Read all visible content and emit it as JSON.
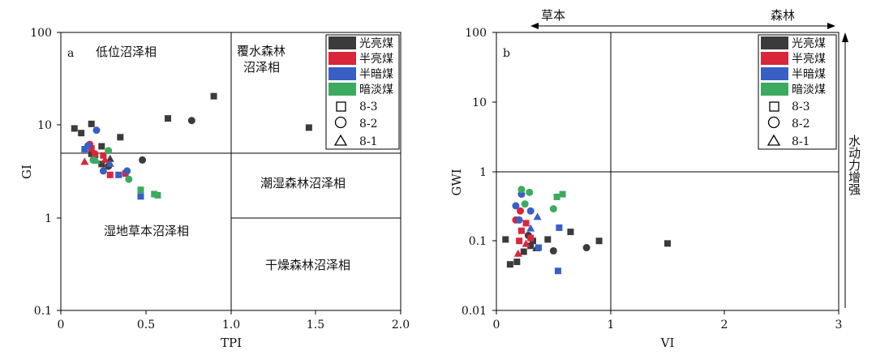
{
  "rank_legend": [
    {
      "label": "光亮煤",
      "color": "#3b3b3b"
    },
    {
      "label": "半亮煤",
      "color": "#d9263b"
    },
    {
      "label": "半暗煤",
      "color": "#3a5fc4"
    },
    {
      "label": "暗淡煤",
      "color": "#3caa5f"
    }
  ],
  "shape_legend": [
    {
      "label": "8-3",
      "shape": "square"
    },
    {
      "label": "8-2",
      "shape": "circle"
    },
    {
      "label": "8-1",
      "shape": "triangle"
    }
  ],
  "chart_data": [
    {
      "type": "scatter",
      "panel_label": "a",
      "xlabel": "TPI",
      "ylabel": "GI",
      "xlim": [
        0,
        2.0
      ],
      "ylim": [
        0.1,
        100
      ],
      "yscale": "log",
      "xticks": [
        "0",
        "0.5",
        "1.0",
        "1.5",
        "2.0"
      ],
      "yticks": [
        "0.1",
        "1",
        "10",
        "100"
      ],
      "grid": false,
      "legend_position": "top-right",
      "zone_labels": [
        "低位沼泽相",
        "覆水森林",
        "沼泽相",
        "潮湿森林沼泽相",
        "湿地草本沼泽相",
        "干燥森林沼泽相"
      ],
      "series": [
        {
          "name": "光亮煤",
          "color": "#3b3b3b",
          "points": [
            {
              "x": 0.08,
              "y": 9.2,
              "shape": "square"
            },
            {
              "x": 0.12,
              "y": 8.2,
              "shape": "square"
            },
            {
              "x": 0.18,
              "y": 10.3,
              "shape": "square"
            },
            {
              "x": 0.35,
              "y": 7.4,
              "shape": "square"
            },
            {
              "x": 0.63,
              "y": 11.8,
              "shape": "square"
            },
            {
              "x": 0.9,
              "y": 20.5,
              "shape": "square"
            },
            {
              "x": 1.46,
              "y": 9.4,
              "shape": "square"
            },
            {
              "x": 0.24,
              "y": 5.9,
              "shape": "square"
            },
            {
              "x": 0.18,
              "y": 4.9,
              "shape": "square"
            },
            {
              "x": 0.24,
              "y": 3.8,
              "shape": "square"
            },
            {
              "x": 0.2,
              "y": 4.6,
              "shape": "circle"
            },
            {
              "x": 0.77,
              "y": 11.2,
              "shape": "circle"
            },
            {
              "x": 0.48,
              "y": 4.2,
              "shape": "circle"
            },
            {
              "x": 0.28,
              "y": 3.6,
              "shape": "circle"
            },
            {
              "x": 0.29,
              "y": 4.3,
              "shape": "triangle"
            }
          ]
        },
        {
          "name": "半亮煤",
          "color": "#d9263b",
          "points": [
            {
              "x": 0.18,
              "y": 5.6,
              "shape": "square"
            },
            {
              "x": 0.25,
              "y": 4.7,
              "shape": "square"
            },
            {
              "x": 0.29,
              "y": 2.9,
              "shape": "square"
            },
            {
              "x": 0.38,
              "y": 3.0,
              "shape": "square"
            },
            {
              "x": 0.17,
              "y": 6.2,
              "shape": "circle"
            },
            {
              "x": 0.2,
              "y": 4.9,
              "shape": "circle"
            },
            {
              "x": 0.14,
              "y": 4.0,
              "shape": "triangle"
            },
            {
              "x": 0.26,
              "y": 4.2,
              "shape": "triangle"
            }
          ]
        },
        {
          "name": "半暗煤",
          "color": "#3a5fc4",
          "points": [
            {
              "x": 0.14,
              "y": 5.5,
              "shape": "square"
            },
            {
              "x": 0.34,
              "y": 2.9,
              "shape": "square"
            },
            {
              "x": 0.47,
              "y": 1.7,
              "shape": "square"
            },
            {
              "x": 0.21,
              "y": 8.8,
              "shape": "circle"
            },
            {
              "x": 0.25,
              "y": 3.2,
              "shape": "circle"
            },
            {
              "x": 0.16,
              "y": 6.0,
              "shape": "circle"
            },
            {
              "x": 0.39,
              "y": 3.2,
              "shape": "circle"
            },
            {
              "x": 0.29,
              "y": 3.8,
              "shape": "triangle"
            }
          ]
        },
        {
          "name": "暗淡煤",
          "color": "#3caa5f",
          "points": [
            {
              "x": 0.47,
              "y": 2.0,
              "shape": "square"
            },
            {
              "x": 0.55,
              "y": 1.8,
              "shape": "square"
            },
            {
              "x": 0.57,
              "y": 1.75,
              "shape": "square"
            },
            {
              "x": 0.28,
              "y": 5.3,
              "shape": "circle"
            },
            {
              "x": 0.4,
              "y": 2.6,
              "shape": "circle"
            },
            {
              "x": 0.19,
              "y": 4.2,
              "shape": "circle"
            },
            {
              "x": 0.21,
              "y": 4.1,
              "shape": "triangle"
            }
          ]
        }
      ]
    },
    {
      "type": "scatter",
      "panel_label": "b",
      "xlabel": "VI",
      "ylabel": "GWI",
      "xlim": [
        0,
        3
      ],
      "ylim": [
        0.01,
        100
      ],
      "yscale": "log",
      "xticks": [
        "0",
        "1",
        "2",
        "3"
      ],
      "yticks": [
        "0.01",
        "0.1",
        "1",
        "10",
        "100"
      ],
      "grid": false,
      "legend_position": "top-right",
      "top_arrow": {
        "left": "草本",
        "right": "森林"
      },
      "right_arrow": "水动力增强",
      "series": [
        {
          "name": "光亮煤",
          "color": "#3b3b3b",
          "points": [
            {
              "x": 0.08,
              "y": 0.105,
              "shape": "square"
            },
            {
              "x": 0.12,
              "y": 0.046,
              "shape": "square"
            },
            {
              "x": 0.18,
              "y": 0.05,
              "shape": "square"
            },
            {
              "x": 0.24,
              "y": 0.07,
              "shape": "square"
            },
            {
              "x": 0.3,
              "y": 0.085,
              "shape": "square"
            },
            {
              "x": 0.45,
              "y": 0.105,
              "shape": "square"
            },
            {
              "x": 0.65,
              "y": 0.135,
              "shape": "square"
            },
            {
              "x": 0.9,
              "y": 0.1,
              "shape": "square"
            },
            {
              "x": 1.5,
              "y": 0.092,
              "shape": "square"
            },
            {
              "x": 0.32,
              "y": 0.1,
              "shape": "square"
            },
            {
              "x": 0.5,
              "y": 0.072,
              "shape": "circle"
            },
            {
              "x": 0.79,
              "y": 0.08,
              "shape": "circle"
            },
            {
              "x": 0.28,
              "y": 0.12,
              "shape": "circle"
            },
            {
              "x": 0.35,
              "y": 0.078,
              "shape": "triangle"
            }
          ]
        },
        {
          "name": "半亮煤",
          "color": "#d9263b",
          "points": [
            {
              "x": 0.22,
              "y": 0.14,
              "shape": "square"
            },
            {
              "x": 0.2,
              "y": 0.1,
              "shape": "square"
            },
            {
              "x": 0.26,
              "y": 0.18,
              "shape": "square"
            },
            {
              "x": 0.3,
              "y": 0.11,
              "shape": "square"
            },
            {
              "x": 0.17,
              "y": 0.2,
              "shape": "circle"
            },
            {
              "x": 0.21,
              "y": 0.27,
              "shape": "circle"
            },
            {
              "x": 0.19,
              "y": 0.065,
              "shape": "triangle"
            },
            {
              "x": 0.26,
              "y": 0.09,
              "shape": "triangle"
            }
          ]
        },
        {
          "name": "半暗煤",
          "color": "#3a5fc4",
          "points": [
            {
              "x": 0.55,
              "y": 0.155,
              "shape": "square"
            },
            {
              "x": 0.54,
              "y": 0.037,
              "shape": "square"
            },
            {
              "x": 0.37,
              "y": 0.08,
              "shape": "square"
            },
            {
              "x": 0.17,
              "y": 0.32,
              "shape": "circle"
            },
            {
              "x": 0.22,
              "y": 0.47,
              "shape": "circle"
            },
            {
              "x": 0.3,
              "y": 0.27,
              "shape": "circle"
            },
            {
              "x": 0.2,
              "y": 0.2,
              "shape": "circle"
            },
            {
              "x": 0.36,
              "y": 0.22,
              "shape": "triangle"
            },
            {
              "x": 0.3,
              "y": 0.15,
              "shape": "triangle"
            }
          ]
        },
        {
          "name": "暗淡煤",
          "color": "#3caa5f",
          "points": [
            {
              "x": 0.53,
              "y": 0.43,
              "shape": "square"
            },
            {
              "x": 0.58,
              "y": 0.47,
              "shape": "square"
            },
            {
              "x": 0.22,
              "y": 0.55,
              "shape": "circle"
            },
            {
              "x": 0.29,
              "y": 0.5,
              "shape": "circle"
            },
            {
              "x": 0.5,
              "y": 0.29,
              "shape": "circle"
            },
            {
              "x": 0.25,
              "y": 0.34,
              "shape": "circle"
            }
          ]
        }
      ]
    }
  ]
}
